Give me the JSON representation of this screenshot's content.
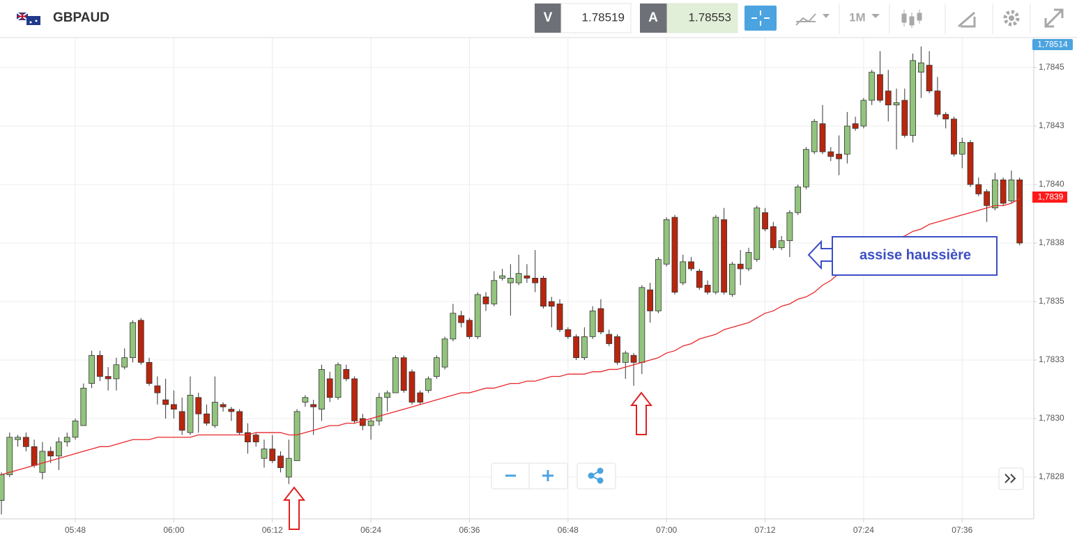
{
  "header": {
    "symbol": "GBPAUD",
    "sell_label": "V",
    "sell_price": "1.78519",
    "buy_label": "A",
    "buy_price": "1.78553",
    "timeframe": "1M"
  },
  "chart_data": {
    "type": "candlestick",
    "categories": [
      null,
      null,
      null,
      null,
      null,
      null,
      null,
      null,
      null,
      "05:48",
      null,
      null,
      null,
      null,
      null,
      null,
      null,
      null,
      null,
      null,
      null,
      "06:00",
      null,
      null,
      null,
      null,
      null,
      null,
      null,
      null,
      null,
      null,
      null,
      "06:12",
      null,
      null,
      null,
      null,
      null,
      null,
      null,
      null,
      null,
      null,
      null,
      "06:24",
      null,
      null,
      null,
      null,
      null,
      null,
      null,
      null,
      null,
      null,
      null,
      "06:36",
      null,
      null,
      null,
      null,
      null,
      null,
      null,
      null,
      null,
      null,
      null,
      "06:48",
      null,
      null,
      null,
      null,
      null,
      null,
      null,
      null,
      null,
      null,
      null,
      "07:00",
      null,
      null,
      null,
      null,
      null,
      null,
      null,
      null,
      null,
      null,
      null,
      "07:12",
      null,
      null,
      null,
      null,
      null,
      null,
      null,
      null,
      null,
      null,
      null,
      "07:24",
      null,
      null,
      null,
      null,
      null,
      null,
      null,
      null,
      null,
      null,
      null,
      "07:36",
      null,
      null,
      null,
      null,
      null,
      null,
      null
    ],
    "open": [
      1.78265,
      1.78276,
      1.78291,
      1.78292,
      1.78288,
      1.78277,
      1.78286,
      1.78284,
      1.7829,
      1.78292,
      1.78297,
      1.78315,
      1.78327,
      1.78318,
      1.78317,
      1.78322,
      1.78326,
      1.78342,
      1.78324,
      1.78314,
      1.78308,
      1.78306,
      1.78303,
      1.78294,
      1.78309,
      1.78302,
      1.78297,
      1.78306,
      1.78304,
      1.78303,
      1.78294,
      1.78293,
      1.78283,
      1.78287,
      1.78284,
      1.78275,
      1.78282,
      1.78307,
      1.78306,
      1.78304,
      1.78317,
      1.78309,
      1.78321,
      1.78317,
      1.783,
      1.78297,
      1.78299,
      1.78309,
      1.78311,
      1.78326,
      1.7832,
      1.78311,
      1.78312,
      1.78318,
      1.78322,
      1.78334,
      1.78344,
      1.78342,
      1.78335,
      1.78352,
      1.78349,
      1.7836,
      1.78358,
      1.78358,
      1.78361,
      1.7836,
      1.7836,
      1.7835,
      1.78349,
      1.78338,
      1.78335,
      1.78326,
      1.78335,
      1.78347,
      1.78336,
      1.78335,
      1.78324,
      1.78327,
      1.78324,
      1.78355,
      1.78346,
      1.78366,
      1.78386,
      1.78358,
      1.78367,
      1.78363,
      1.78357,
      1.78354,
      1.78385,
      1.78353,
      1.78366,
      1.78364,
      1.78368,
      1.78388,
      1.78382,
      1.78373,
      1.78376,
      1.78388,
      1.78399,
      1.78414,
      1.78426,
      1.78414,
      1.78413,
      1.78413,
      1.78426,
      1.78425,
      1.78436,
      1.78447,
      1.7844,
      1.78434,
      1.78436,
      1.78421,
      1.78448,
      1.78451,
      1.7844,
      1.7843,
      1.78428,
      1.78413,
      1.78418,
      1.784,
      1.78397,
      1.7839,
      1.78402,
      1.78393,
      1.78402
    ],
    "high": [
      1.78277,
      1.78294,
      1.78293,
      1.78294,
      1.78291,
      1.7829,
      1.78288,
      1.78292,
      1.78294,
      1.783,
      1.78315,
      1.78329,
      1.78329,
      1.78322,
      1.78326,
      1.7833,
      1.78342,
      1.78343,
      1.78326,
      1.78318,
      1.78317,
      1.78312,
      1.78309,
      1.78318,
      1.78311,
      1.78306,
      1.78318,
      1.78307,
      1.78305,
      1.78304,
      1.78298,
      1.78294,
      1.78291,
      1.78293,
      1.78286,
      1.78291,
      1.78304,
      1.7831,
      1.78308,
      1.78323,
      1.7832,
      1.78324,
      1.78323,
      1.78318,
      1.78302,
      1.783,
      1.78311,
      1.78312,
      1.78327,
      1.78327,
      1.78321,
      1.78312,
      1.78318,
      1.78327,
      1.78335,
      1.78349,
      1.78346,
      1.78343,
      1.78354,
      1.78354,
      1.78363,
      1.78364,
      1.78366,
      1.7837,
      1.78366,
      1.78372,
      1.78361,
      1.78352,
      1.78351,
      1.78339,
      1.78336,
      1.78339,
      1.78348,
      1.78351,
      1.78338,
      1.78336,
      1.78329,
      1.78328,
      1.78357,
      1.78358,
      1.78369,
      1.78386,
      1.78387,
      1.7837,
      1.78369,
      1.78364,
      1.78359,
      1.78387,
      1.7839,
      1.78367,
      1.78372,
      1.78373,
      1.78391,
      1.7839,
      1.78384,
      1.78378,
      1.78389,
      1.784,
      1.78416,
      1.78428,
      1.78434,
      1.78416,
      1.78421,
      1.78431,
      1.78429,
      1.78437,
      1.78449,
      1.78457,
      1.78449,
      1.78441,
      1.78441,
      1.78456,
      1.78459,
      1.78457,
      1.78446,
      1.78431,
      1.78429,
      1.7842,
      1.78419,
      1.78403,
      1.78398,
      1.78405,
      1.78403,
      1.78406,
      1.78403
    ],
    "low": [
      1.78259,
      1.78275,
      1.78288,
      1.78286,
      1.78279,
      1.78274,
      1.78281,
      1.78278,
      1.78288,
      1.78291,
      1.78297,
      1.78313,
      1.78316,
      1.78312,
      1.78312,
      1.78321,
      1.78324,
      1.78323,
      1.78314,
      1.78306,
      1.783,
      1.783,
      1.78293,
      1.78293,
      1.78294,
      1.78297,
      1.78296,
      1.78303,
      1.78299,
      1.78293,
      1.78285,
      1.78288,
      1.78279,
      1.78281,
      1.78277,
      1.78272,
      1.78282,
      1.78305,
      1.78293,
      1.78299,
      1.78307,
      1.78308,
      1.78316,
      1.78298,
      1.78295,
      1.78291,
      1.78297,
      1.78303,
      1.78311,
      1.78311,
      1.78306,
      1.78306,
      1.78311,
      1.78317,
      1.78321,
      1.78333,
      1.78339,
      1.78334,
      1.78334,
      1.78346,
      1.78348,
      1.78359,
      1.78344,
      1.78357,
      1.78358,
      1.78354,
      1.78347,
      1.78339,
      1.78337,
      1.78334,
      1.78325,
      1.78325,
      1.78334,
      1.78336,
      1.78331,
      1.78323,
      1.78317,
      1.78314,
      1.78319,
      1.78341,
      1.78345,
      1.78365,
      1.78353,
      1.78357,
      1.78363,
      1.78355,
      1.78353,
      1.78353,
      1.78353,
      1.78352,
      1.78357,
      1.78363,
      1.78367,
      1.7838,
      1.78372,
      1.78372,
      1.78369,
      1.78387,
      1.78398,
      1.78413,
      1.78413,
      1.7841,
      1.78404,
      1.78409,
      1.78423,
      1.78424,
      1.78434,
      1.78435,
      1.78427,
      1.78415,
      1.7842,
      1.78418,
      1.78437,
      1.78439,
      1.78429,
      1.78424,
      1.78412,
      1.78407,
      1.78399,
      1.78395,
      1.78384,
      1.78389,
      1.78391,
      1.78392,
      1.78374
    ],
    "close": [
      1.78276,
      1.78292,
      1.78292,
      1.78288,
      1.7828,
      1.78286,
      1.78284,
      1.7829,
      1.78292,
      1.78299,
      1.78313,
      1.78327,
      1.78318,
      1.78317,
      1.78323,
      1.78326,
      1.78341,
      1.78324,
      1.78315,
      1.78311,
      1.78306,
      1.78304,
      1.78295,
      1.7831,
      1.78302,
      1.78298,
      1.78307,
      1.78305,
      1.78303,
      1.78294,
      1.7829,
      1.7829,
      1.78287,
      1.78282,
      1.78279,
      1.78283,
      1.78303,
      1.78309,
      1.78305,
      1.78321,
      1.78309,
      1.78323,
      1.78317,
      1.78299,
      1.78297,
      1.78299,
      1.78309,
      1.78311,
      1.78326,
      1.78312,
      1.78307,
      1.78307,
      1.78317,
      1.78326,
      1.78334,
      1.78345,
      1.78341,
      1.78335,
      1.78353,
      1.78349,
      1.78359,
      1.78361,
      1.7836,
      1.78362,
      1.7836,
      1.78358,
      1.78348,
      1.78348,
      1.78338,
      1.78335,
      1.78326,
      1.78335,
      1.78346,
      1.78337,
      1.78332,
      1.78324,
      1.78328,
      1.78324,
      1.78356,
      1.78346,
      1.78368,
      1.78385,
      1.78354,
      1.78367,
      1.78364,
      1.78356,
      1.78354,
      1.78386,
      1.78354,
      1.78366,
      1.78364,
      1.78371,
      1.7839,
      1.78381,
      1.78373,
      1.78376,
      1.78388,
      1.78399,
      1.78415,
      1.78427,
      1.78414,
      1.78412,
      1.78411,
      1.78425,
      1.78424,
      1.78436,
      1.78448,
      1.78436,
      1.78434,
      1.78435,
      1.78421,
      1.78453,
      1.78452,
      1.7844,
      1.7843,
      1.78428,
      1.78413,
      1.78418,
      1.784,
      1.78396,
      1.78391,
      1.78402,
      1.78392,
      1.78402,
      1.78375
    ],
    "moving_average": {
      "color": "#e8262a",
      "values": [
        1.78276,
        1.78277,
        1.78278,
        1.78279,
        1.7828,
        1.78281,
        1.78282,
        1.78283,
        1.78284,
        1.78285,
        1.78286,
        1.78287,
        1.78288,
        1.78288,
        1.78289,
        1.7829,
        1.78291,
        1.78291,
        1.78291,
        1.78292,
        1.78292,
        1.78292,
        1.78292,
        1.78292,
        1.78293,
        1.78293,
        1.78293,
        1.78293,
        1.78293,
        1.78293,
        1.78293,
        1.78294,
        1.78294,
        1.78294,
        1.78294,
        1.78293,
        1.78293,
        1.78294,
        1.78295,
        1.78296,
        1.78297,
        1.78297,
        1.78298,
        1.78298,
        1.78299,
        1.783,
        1.78301,
        1.78302,
        1.78303,
        1.78304,
        1.78305,
        1.78306,
        1.78307,
        1.78308,
        1.78309,
        1.7831,
        1.78311,
        1.78311,
        1.78312,
        1.78313,
        1.78313,
        1.78314,
        1.78315,
        1.78315,
        1.78316,
        1.78316,
        1.78317,
        1.78318,
        1.78318,
        1.78319,
        1.78319,
        1.78319,
        1.7832,
        1.7832,
        1.78321,
        1.78321,
        1.78322,
        1.78323,
        1.78324,
        1.78325,
        1.78326,
        1.78328,
        1.78329,
        1.78331,
        1.78332,
        1.78334,
        1.78335,
        1.78336,
        1.78338,
        1.78339,
        1.7834,
        1.78341,
        1.78343,
        1.78345,
        1.78346,
        1.78348,
        1.78349,
        1.78351,
        1.78352,
        1.78354,
        1.78357,
        1.78359,
        1.78362,
        1.78364,
        1.78367,
        1.7837,
        1.78372,
        1.78374,
        1.78375,
        1.78377,
        1.78378,
        1.7838,
        1.78381,
        1.78383,
        1.78384,
        1.78385,
        1.78386,
        1.78387,
        1.78388,
        1.78389,
        1.7839,
        1.78391,
        1.78391,
        1.78392,
        1.78394
      ]
    },
    "up_color": "#93c47d",
    "down_color": "#b8260e",
    "ylim": [
      1.78257,
      1.78463
    ],
    "yticks": [
      {
        "value": 1.7845,
        "label": "1,7845"
      },
      {
        "value": 1.78425,
        "label": "1,7843"
      },
      {
        "value": 1.784,
        "label": "1,7840"
      },
      {
        "value": 1.78375,
        "label": "1,7838"
      },
      {
        "value": 1.7835,
        "label": "1,7835"
      },
      {
        "value": 1.78325,
        "label": "1,7833"
      },
      {
        "value": 1.783,
        "label": "1,7830"
      },
      {
        "value": 1.78275,
        "label": "1,7828"
      }
    ],
    "grid": true,
    "top_price_label": "1,78514",
    "last_price_label": "1,7839",
    "annotation": "assise haussière"
  }
}
